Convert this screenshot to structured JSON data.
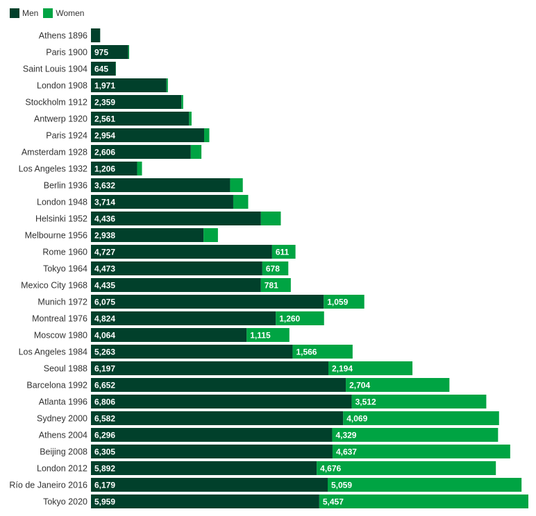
{
  "chart_data": {
    "type": "bar",
    "orientation": "horizontal",
    "stacked": true,
    "title": "",
    "xlabel": "",
    "ylabel": "",
    "grid": false,
    "legend_position": "top-left",
    "xlim": [
      0,
      11416
    ],
    "categories": [
      "Athens 1896",
      "Paris 1900",
      "Saint Louis 1904",
      "London 1908",
      "Stockholm 1912",
      "Antwerp 1920",
      "Paris 1924",
      "Amsterdam 1928",
      "Los Angeles 1932",
      "Berlin 1936",
      "London 1948",
      "Helsinki 1952",
      "Melbourne 1956",
      "Rome 1960",
      "Tokyo 1964",
      "Mexico City 1968",
      "Munich 1972",
      "Montreal 1976",
      "Moscow 1980",
      "Los Angeles 1984",
      "Seoul 1988",
      "Barcelona 1992",
      "Atlanta 1996",
      "Sydney 2000",
      "Athens 2004",
      "Beijing 2008",
      "London 2012",
      "Río de Janeiro 2016",
      "Tokyo 2020"
    ],
    "series": [
      {
        "name": "Men",
        "color": "#01402b",
        "values": [
          241,
          975,
          645,
          1971,
          2359,
          2561,
          2954,
          2606,
          1206,
          3632,
          3714,
          4436,
          2938,
          4727,
          4473,
          4435,
          6075,
          4824,
          4064,
          5263,
          6197,
          6652,
          6806,
          6582,
          6296,
          6305,
          5892,
          6179,
          5959
        ],
        "labels": [
          "",
          "975",
          "645",
          "1,971",
          "2,359",
          "2,561",
          "2,954",
          "2,606",
          "1,206",
          "3,632",
          "3,714",
          "4,436",
          "2,938",
          "4,727",
          "4,473",
          "4,435",
          "6,075",
          "4,824",
          "4,064",
          "5,263",
          "6,197",
          "6,652",
          "6,806",
          "6,582",
          "6,296",
          "6,305",
          "5,892",
          "6,179",
          "5,959"
        ]
      },
      {
        "name": "Women",
        "color": "#00a443",
        "values": [
          0,
          22,
          6,
          37,
          48,
          65,
          135,
          277,
          126,
          331,
          390,
          519,
          376,
          611,
          678,
          781,
          1059,
          1260,
          1115,
          1566,
          2194,
          2704,
          3512,
          4069,
          4329,
          4637,
          4676,
          5059,
          5457
        ],
        "labels": [
          "",
          "",
          "",
          "",
          "",
          "",
          "",
          "",
          "",
          "",
          "",
          "",
          "",
          "611",
          "678",
          "781",
          "1,059",
          "1,260",
          "1,115",
          "1,566",
          "2,194",
          "2,704",
          "3,512",
          "4,069",
          "4,329",
          "4,637",
          "4,676",
          "5,059",
          "5,457"
        ]
      }
    ]
  }
}
